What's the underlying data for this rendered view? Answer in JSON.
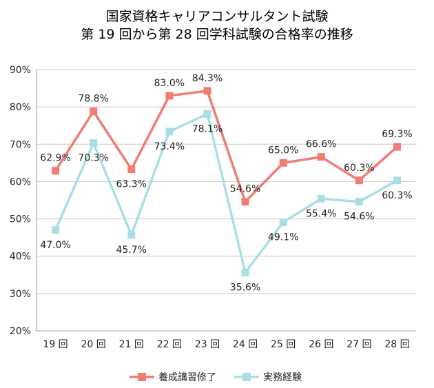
{
  "chart_data": {
    "type": "line",
    "title_lines": [
      "国家資格キャリアコンサルタント試験",
      "第 19 回から第 28 回学科試験の合格率の推移"
    ],
    "categories": [
      "19 回",
      "20 回",
      "21 回",
      "22 回",
      "23 回",
      "24 回",
      "25 回",
      "26 回",
      "27 回",
      "28 回"
    ],
    "ylim": [
      20,
      90
    ],
    "yticks": [
      "20%",
      "30%",
      "40%",
      "50%",
      "60%",
      "70%",
      "80%",
      "90%"
    ],
    "ytick_values": [
      20,
      30,
      40,
      50,
      60,
      70,
      80,
      90
    ],
    "grid": true,
    "legend_position": "bottom",
    "series": [
      {
        "name": "養成講習修了",
        "color": "#f07c74",
        "values": [
          62.9,
          78.8,
          63.3,
          83.0,
          84.3,
          54.6,
          65.0,
          66.6,
          60.3,
          69.3
        ],
        "labels": [
          "62.9%",
          "78.8%",
          "63.3%",
          "83.0%",
          "84.3%",
          "54.6%",
          "65.0%",
          "66.6%",
          "60.3%",
          "69.3%"
        ],
        "label_pos": [
          "above",
          "above",
          "below",
          "above",
          "above",
          "above",
          "above",
          "above",
          "above",
          "above"
        ]
      },
      {
        "name": "実務経験",
        "color": "#a9dfe4",
        "values": [
          47.0,
          70.3,
          45.7,
          73.4,
          78.1,
          35.6,
          49.1,
          55.4,
          54.6,
          60.3
        ],
        "labels": [
          "47.0%",
          "70.3%",
          "45.7%",
          "73.4%",
          "78.1%",
          "35.6%",
          "49.1%",
          "55.4%",
          "54.6%",
          "60.3%"
        ],
        "label_pos": [
          "below",
          "below",
          "below",
          "below",
          "below",
          "below",
          "below",
          "below",
          "below",
          "below"
        ]
      }
    ]
  }
}
